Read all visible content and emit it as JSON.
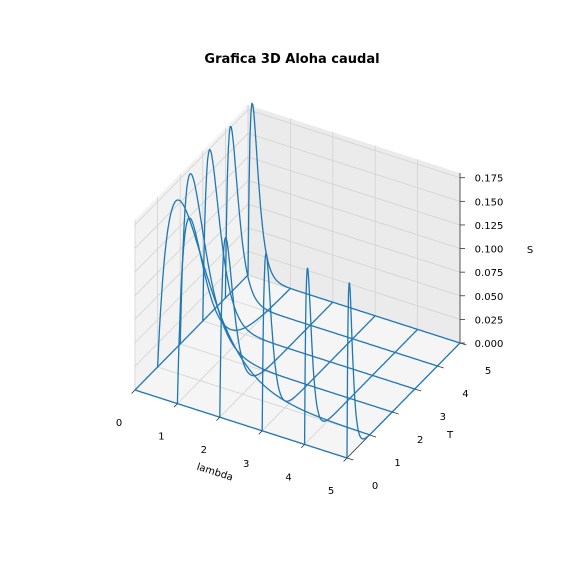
{
  "chart_data": {
    "type": "wireframe-3d",
    "title": "Grafica 3D Aloha caudal",
    "xlabel": "lambda",
    "ylabel": "T",
    "zlabel": "S",
    "xlim": [
      0,
      5
    ],
    "ylim": [
      0,
      5
    ],
    "zlim": [
      0,
      0.18
    ],
    "xticks": [
      "0",
      "1",
      "2",
      "3",
      "4",
      "5"
    ],
    "yticks": [
      "0",
      "1",
      "2",
      "3",
      "4",
      "5"
    ],
    "zticks": [
      "0.000",
      "0.025",
      "0.050",
      "0.075",
      "0.100",
      "0.125",
      "0.150",
      "0.175"
    ],
    "function": "S = lambda * T * exp(-2 * lambda * T)",
    "grid": true,
    "line_color": "#1f77b4",
    "x": [
      0,
      1,
      2,
      3,
      4,
      5
    ],
    "y": [
      0,
      1,
      2,
      3,
      4,
      5
    ]
  }
}
